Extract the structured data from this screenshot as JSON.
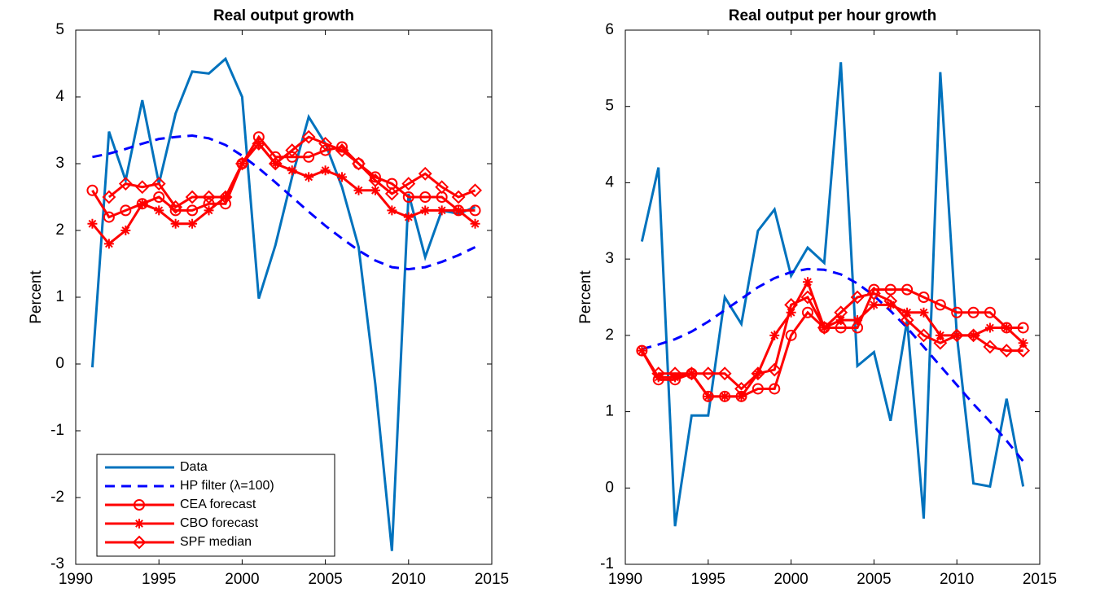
{
  "chart_data": [
    {
      "type": "line",
      "title": "Real output growth",
      "y_label": "Percent",
      "x": [
        1991,
        1992,
        1993,
        1994,
        1995,
        1996,
        1997,
        1998,
        1999,
        2000,
        2001,
        2002,
        2003,
        2004,
        2005,
        2006,
        2007,
        2008,
        2009,
        2010,
        2011,
        2012,
        2013,
        2014
      ],
      "xlim": [
        1990,
        2015
      ],
      "xticks": [
        1990,
        1995,
        2000,
        2005,
        2010,
        2015
      ],
      "ylim": [
        -3,
        5
      ],
      "yticks": [
        -3,
        -2,
        -1,
        0,
        1,
        2,
        3,
        4,
        5
      ],
      "legend": "lower left",
      "series": [
        {
          "name": "Data",
          "color": "#0072bd",
          "dash": "solid",
          "marker": "none",
          "values": [
            -0.05,
            3.48,
            2.75,
            3.95,
            2.7,
            3.75,
            4.38,
            4.35,
            4.57,
            4.0,
            0.98,
            1.78,
            2.8,
            3.7,
            3.3,
            2.65,
            1.75,
            -0.3,
            -2.8,
            2.55,
            1.6,
            2.3,
            2.25,
            2.35
          ]
        },
        {
          "name": "HP filter (λ=100)",
          "color": "#0000ff",
          "dash": "dashed",
          "marker": "none",
          "values": [
            3.1,
            3.15,
            3.22,
            3.3,
            3.37,
            3.4,
            3.42,
            3.38,
            3.28,
            3.12,
            2.93,
            2.72,
            2.5,
            2.28,
            2.07,
            1.88,
            1.7,
            1.55,
            1.45,
            1.42,
            1.45,
            1.53,
            1.63,
            1.75
          ]
        },
        {
          "name": "CEA forecast",
          "color": "#ff0000",
          "dash": "solid",
          "marker": "circle",
          "values": [
            2.6,
            2.2,
            2.3,
            2.4,
            2.5,
            2.3,
            2.3,
            2.4,
            2.4,
            3.0,
            3.4,
            3.1,
            3.1,
            3.1,
            3.2,
            3.25,
            3.0,
            2.8,
            2.7,
            2.5,
            2.5,
            2.5,
            2.3,
            2.3
          ]
        },
        {
          "name": "CBO forecast",
          "color": "#ff0000",
          "dash": "solid",
          "marker": "asterisk",
          "values": [
            2.1,
            1.8,
            2.0,
            2.4,
            2.3,
            2.1,
            2.1,
            2.3,
            2.5,
            3.0,
            3.3,
            3.0,
            2.9,
            2.8,
            2.9,
            2.8,
            2.6,
            2.6,
            2.3,
            2.2,
            2.3,
            2.3,
            2.3,
            2.1
          ]
        },
        {
          "name": "SPF median",
          "color": "#ff0000",
          "dash": "solid",
          "marker": "diamond",
          "values": [
            null,
            2.5,
            2.7,
            2.65,
            2.7,
            2.35,
            2.5,
            2.5,
            2.5,
            3.0,
            3.3,
            3.0,
            3.2,
            3.4,
            3.3,
            3.2,
            3.0,
            2.75,
            2.55,
            2.7,
            2.85,
            2.65,
            2.5,
            2.6
          ]
        }
      ]
    },
    {
      "type": "line",
      "title": "Real output per hour growth",
      "y_label": "Percent",
      "x": [
        1991,
        1992,
        1993,
        1994,
        1995,
        1996,
        1997,
        1998,
        1999,
        2000,
        2001,
        2002,
        2003,
        2004,
        2005,
        2006,
        2007,
        2008,
        2009,
        2010,
        2011,
        2012,
        2013,
        2014
      ],
      "xlim": [
        1990,
        2015
      ],
      "xticks": [
        1990,
        1995,
        2000,
        2005,
        2010,
        2015
      ],
      "ylim": [
        -1,
        6
      ],
      "yticks": [
        -1,
        0,
        1,
        2,
        3,
        4,
        5,
        6
      ],
      "series": [
        {
          "color": "#0072bd",
          "dash": "solid",
          "marker": "none",
          "values": [
            3.23,
            4.2,
            -0.5,
            0.95,
            0.95,
            2.5,
            2.15,
            3.37,
            3.65,
            2.78,
            3.15,
            2.95,
            5.58,
            1.6,
            1.78,
            0.88,
            2.2,
            -0.4,
            5.45,
            2.0,
            0.06,
            0.02,
            1.17,
            0.02
          ]
        },
        {
          "color": "#0000ff",
          "dash": "dashed",
          "marker": "none",
          "values": [
            1.82,
            1.88,
            1.95,
            2.05,
            2.18,
            2.33,
            2.48,
            2.63,
            2.75,
            2.83,
            2.87,
            2.86,
            2.8,
            2.68,
            2.52,
            2.32,
            2.1,
            1.85,
            1.6,
            1.35,
            1.1,
            0.87,
            0.62,
            0.35
          ]
        },
        {
          "color": "#ff0000",
          "dash": "solid",
          "marker": "circle",
          "values": [
            1.8,
            1.42,
            1.42,
            1.5,
            1.2,
            1.2,
            1.2,
            1.3,
            1.3,
            2.0,
            2.3,
            2.1,
            2.1,
            2.1,
            2.6,
            2.6,
            2.6,
            2.5,
            2.4,
            2.3,
            2.3,
            2.3,
            2.1,
            2.1
          ]
        },
        {
          "color": "#ff0000",
          "dash": "solid",
          "marker": "asterisk",
          "values": [
            1.8,
            1.45,
            1.45,
            1.5,
            1.2,
            1.2,
            1.2,
            1.5,
            2.0,
            2.3,
            2.7,
            2.1,
            2.2,
            2.2,
            2.4,
            2.4,
            2.3,
            2.3,
            2.0,
            2.0,
            2.0,
            2.1,
            2.1,
            1.9
          ]
        },
        {
          "color": "#ff0000",
          "dash": "solid",
          "marker": "diamond",
          "values": [
            null,
            1.5,
            1.5,
            1.5,
            1.5,
            1.5,
            1.3,
            1.5,
            1.55,
            2.4,
            2.5,
            2.1,
            2.3,
            2.5,
            2.55,
            2.45,
            2.2,
            2.0,
            1.9,
            2.0,
            2.0,
            1.85,
            1.8,
            1.8
          ]
        }
      ]
    }
  ]
}
